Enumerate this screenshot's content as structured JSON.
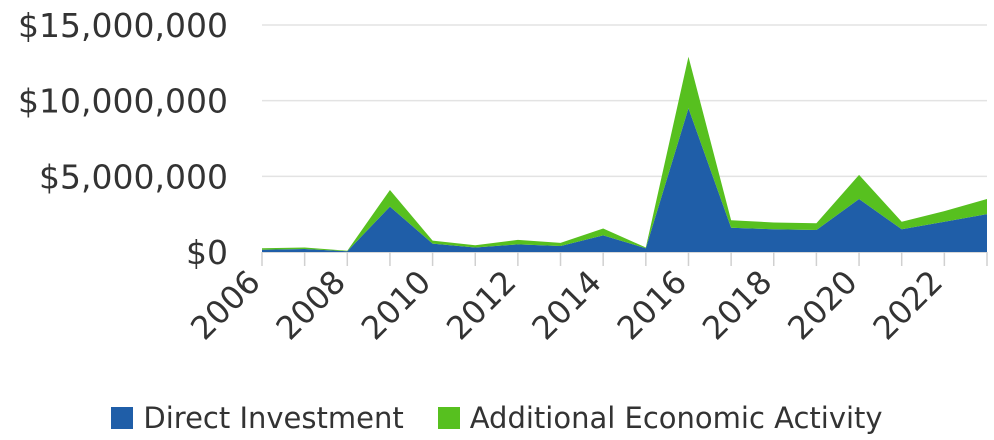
{
  "chart_data": {
    "type": "area",
    "stacked": true,
    "title": "",
    "xlabel": "",
    "ylabel": "",
    "x": [
      2006,
      2007,
      2008,
      2009,
      2010,
      2011,
      2012,
      2013,
      2014,
      2015,
      2016,
      2017,
      2018,
      2019,
      2020,
      2021,
      2022,
      2023
    ],
    "x_tick_labels": [
      "2006",
      "2008",
      "2010",
      "2012",
      "2014",
      "2016",
      "2018",
      "2020",
      "2022"
    ],
    "y_tick_labels": [
      "$0",
      "$5,000,000",
      "$10,000,000",
      "$15,000,000"
    ],
    "ylim": [
      0,
      15000000
    ],
    "grid": true,
    "legend_position": "bottom",
    "series": [
      {
        "name": "Direct Investment",
        "color": "#1f5ea8",
        "values": [
          150000,
          200000,
          50000,
          3000000,
          550000,
          300000,
          500000,
          400000,
          1100000,
          250000,
          9500000,
          1600000,
          1500000,
          1450000,
          3500000,
          1500000,
          2000000,
          2500000
        ]
      },
      {
        "name": "Additional Economic Activity",
        "color": "#57c01f",
        "values": [
          100000,
          100000,
          30000,
          1100000,
          200000,
          150000,
          300000,
          200000,
          450000,
          50000,
          3400000,
          500000,
          450000,
          450000,
          1600000,
          500000,
          700000,
          1000000
        ]
      }
    ]
  }
}
